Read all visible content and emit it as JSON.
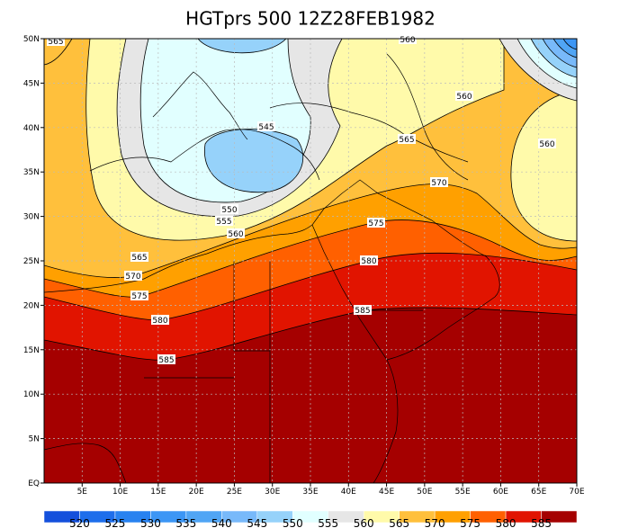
{
  "title": "HGTprs 500 12Z28FEB1982",
  "lon_range": [
    0,
    70
  ],
  "lat_range": [
    0,
    50
  ],
  "lon_ticks": [
    {
      "value": 5,
      "label": "5E"
    },
    {
      "value": 10,
      "label": "10E"
    },
    {
      "value": 15,
      "label": "15E"
    },
    {
      "value": 20,
      "label": "20E"
    },
    {
      "value": 25,
      "label": "25E"
    },
    {
      "value": 30,
      "label": "30E"
    },
    {
      "value": 35,
      "label": "35E"
    },
    {
      "value": 40,
      "label": "40E"
    },
    {
      "value": 45,
      "label": "45E"
    },
    {
      "value": 50,
      "label": "50E"
    },
    {
      "value": 55,
      "label": "55E"
    },
    {
      "value": 60,
      "label": "60E"
    },
    {
      "value": 65,
      "label": "65E"
    },
    {
      "value": 70,
      "label": "70E"
    }
  ],
  "lat_ticks": [
    {
      "value": 0,
      "label": "EQ"
    },
    {
      "value": 5,
      "label": "5N"
    },
    {
      "value": 10,
      "label": "10N"
    },
    {
      "value": 15,
      "label": "15N"
    },
    {
      "value": 20,
      "label": "20N"
    },
    {
      "value": 25,
      "label": "25N"
    },
    {
      "value": 30,
      "label": "30N"
    },
    {
      "value": 35,
      "label": "35N"
    },
    {
      "value": 40,
      "label": "40N"
    },
    {
      "value": 45,
      "label": "45N"
    },
    {
      "value": 50,
      "label": "50N"
    }
  ],
  "contour_labels": [
    565,
    560,
    560,
    560,
    545,
    565,
    570,
    550,
    555,
    560,
    575,
    565,
    570,
    575,
    580,
    580,
    585,
    585
  ],
  "colorbar": {
    "labels": [
      520,
      525,
      530,
      535,
      540,
      545,
      550,
      555,
      560,
      565,
      570,
      575,
      580,
      585
    ],
    "colors": [
      "#1450dc",
      "#1e6eeb",
      "#2882f0",
      "#3c96f5",
      "#50a5f5",
      "#78b9fa",
      "#96d2fa",
      "#e1ffff",
      "#e6e6e6",
      "#fffaaa",
      "#ffc03c",
      "#ffa000",
      "#ff6000",
      "#e11400",
      "#a50000"
    ]
  }
}
